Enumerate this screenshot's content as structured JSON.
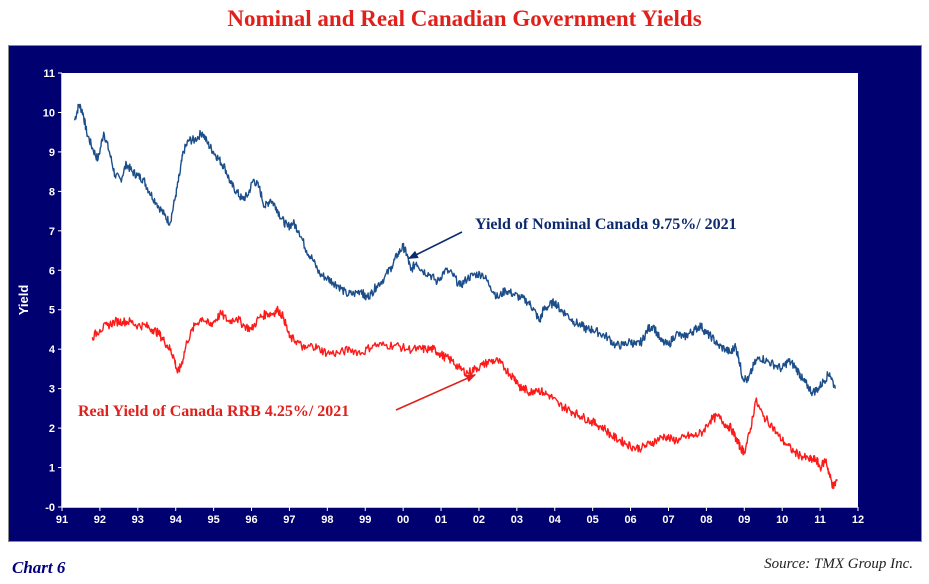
{
  "page": {
    "title": "Nominal and Real Canadian Government Yields",
    "chart_label": "Chart 6",
    "source": "Source: TMX Group Inc."
  },
  "chart_data": {
    "type": "line",
    "title": "Nominal and Real Canadian Government Yields",
    "xlabel": "",
    "ylabel": "Yield",
    "x_tick_labels": [
      "91",
      "92",
      "93",
      "94",
      "95",
      "96",
      "97",
      "98",
      "99",
      "00",
      "01",
      "02",
      "03",
      "04",
      "05",
      "06",
      "07",
      "08",
      "09",
      "10",
      "11",
      "12"
    ],
    "y_tick_labels": [
      "-0",
      "1",
      "2",
      "3",
      "4",
      "5",
      "6",
      "7",
      "8",
      "9",
      "10",
      "11"
    ],
    "xlim": [
      1991,
      2012
    ],
    "ylim": [
      0,
      11
    ],
    "grid": false,
    "legend": "none",
    "colors": {
      "nominal": "#1c4e8a",
      "real": "#ff1a1a",
      "background": "#000070",
      "plot_area": "#ffffff"
    },
    "series": [
      {
        "key": "nominal",
        "x": [
          1991.33,
          1991.45,
          1991.55,
          1991.65,
          1991.8,
          1991.95,
          1992.1,
          1992.25,
          1992.4,
          1992.55,
          1992.7,
          1992.85,
          1993.0,
          1993.15,
          1993.3,
          1993.5,
          1993.7,
          1993.85,
          1994.0,
          1994.1,
          1994.2,
          1994.35,
          1994.5,
          1994.7,
          1994.85,
          1995.0,
          1995.15,
          1995.3,
          1995.45,
          1995.6,
          1995.75,
          1995.9,
          1996.05,
          1996.2,
          1996.35,
          1996.5,
          1996.65,
          1996.8,
          1996.95,
          1997.1,
          1997.25,
          1997.45,
          1997.6,
          1997.8,
          1998.0,
          1998.15,
          1998.3,
          1998.5,
          1998.7,
          1998.9,
          1999.0,
          1999.15,
          1999.3,
          1999.5,
          1999.7,
          1999.85,
          2000.0,
          2000.1,
          2000.2,
          2000.35,
          2000.5,
          2000.7,
          2000.9,
          2001.1,
          2001.3,
          2001.5,
          2001.7,
          2001.9,
          2002.1,
          2002.3,
          2002.5,
          2002.7,
          2002.9,
          2003.1,
          2003.3,
          2003.45,
          2003.6,
          2003.7,
          2003.85,
          2004.0,
          2004.15,
          2004.3,
          2004.5,
          2004.7,
          2004.85,
          2005.0,
          2005.2,
          2005.4,
          2005.6,
          2005.8,
          2006.0,
          2006.15,
          2006.3,
          2006.45,
          2006.6,
          2006.8,
          2007.0,
          2007.2,
          2007.4,
          2007.55,
          2007.7,
          2007.85,
          2008.0,
          2008.15,
          2008.3,
          2008.5,
          2008.65,
          2008.75,
          2008.85,
          2008.95,
          2009.1,
          2009.25,
          2009.4,
          2009.6,
          2009.8,
          2010.0,
          2010.15,
          2010.3,
          2010.45,
          2010.55,
          2010.65,
          2010.8,
          2010.95,
          2011.1,
          2011.25,
          2011.4
        ],
        "y": [
          9.8,
          10.2,
          10.0,
          9.5,
          9.1,
          8.8,
          9.5,
          9.0,
          8.4,
          8.3,
          8.7,
          8.5,
          8.4,
          8.3,
          8.0,
          7.7,
          7.4,
          7.2,
          7.9,
          8.4,
          9.0,
          9.3,
          9.3,
          9.5,
          9.2,
          9.0,
          8.8,
          8.6,
          8.2,
          8.0,
          7.8,
          7.9,
          8.3,
          8.1,
          7.6,
          7.8,
          7.6,
          7.3,
          7.1,
          7.2,
          7.0,
          6.5,
          6.3,
          5.9,
          5.8,
          5.7,
          5.6,
          5.4,
          5.4,
          5.5,
          5.3,
          5.4,
          5.6,
          5.8,
          6.1,
          6.4,
          6.6,
          6.4,
          6.0,
          6.2,
          6.0,
          5.9,
          5.7,
          6.0,
          5.9,
          5.6,
          5.8,
          5.9,
          5.9,
          5.6,
          5.3,
          5.5,
          5.4,
          5.3,
          5.2,
          5.0,
          4.7,
          5.0,
          5.1,
          5.2,
          5.0,
          4.9,
          4.7,
          4.6,
          4.5,
          4.5,
          4.4,
          4.3,
          4.1,
          4.1,
          4.2,
          4.1,
          4.2,
          4.5,
          4.6,
          4.2,
          4.1,
          4.4,
          4.3,
          4.4,
          4.5,
          4.6,
          4.4,
          4.3,
          4.1,
          4.0,
          3.9,
          4.1,
          3.8,
          3.3,
          3.2,
          3.6,
          3.8,
          3.7,
          3.6,
          3.5,
          3.7,
          3.6,
          3.4,
          3.2,
          3.1,
          2.9,
          3.0,
          3.2,
          3.4,
          3.0
        ]
      },
      {
        "key": "real",
        "x": [
          1991.8,
          1992.0,
          1992.2,
          1992.4,
          1992.6,
          1992.8,
          1993.0,
          1993.2,
          1993.4,
          1993.55,
          1993.7,
          1993.85,
          1993.95,
          1994.05,
          1994.15,
          1994.3,
          1994.5,
          1994.7,
          1994.9,
          1995.0,
          1995.2,
          1995.4,
          1995.6,
          1995.8,
          1996.0,
          1996.2,
          1996.4,
          1996.55,
          1996.7,
          1996.85,
          1997.0,
          1997.2,
          1997.4,
          1997.6,
          1997.8,
          1998.0,
          1998.3,
          1998.6,
          1998.9,
          1999.2,
          1999.5,
          1999.8,
          2000.1,
          2000.4,
          2000.6,
          2000.8,
          2000.95,
          2001.1,
          2001.3,
          2001.5,
          2001.7,
          2001.9,
          2002.1,
          2002.3,
          2002.5,
          2002.7,
          2002.9,
          2003.0,
          2003.1,
          2003.2,
          2003.35,
          2003.5,
          2003.7,
          2003.9,
          2004.1,
          2004.3,
          2004.5,
          2004.7,
          2004.9,
          2005.1,
          2005.3,
          2005.5,
          2005.7,
          2005.9,
          2006.1,
          2006.3,
          2006.5,
          2006.7,
          2006.9,
          2007.1,
          2007.3,
          2007.5,
          2007.7,
          2007.9,
          2008.1,
          2008.3,
          2008.5,
          2008.65,
          2008.8,
          2008.9,
          2009.0,
          2009.15,
          2009.3,
          2009.5,
          2009.7,
          2009.9,
          2010.1,
          2010.3,
          2010.5,
          2010.7,
          2010.8,
          2010.9,
          2011.0,
          2011.15,
          2011.25,
          2011.35,
          2011.45
        ],
        "y": [
          4.3,
          4.5,
          4.6,
          4.7,
          4.7,
          4.7,
          4.6,
          4.6,
          4.5,
          4.4,
          4.2,
          4.0,
          3.8,
          3.4,
          3.6,
          4.2,
          4.6,
          4.8,
          4.6,
          4.7,
          4.9,
          4.7,
          4.8,
          4.6,
          4.5,
          4.8,
          4.9,
          4.9,
          5.0,
          4.8,
          4.3,
          4.2,
          4.0,
          4.1,
          4.0,
          3.9,
          3.9,
          4.0,
          3.9,
          4.1,
          4.1,
          4.1,
          4.0,
          4.0,
          4.0,
          4.0,
          3.9,
          3.8,
          3.7,
          3.5,
          3.4,
          3.5,
          3.6,
          3.7,
          3.7,
          3.5,
          3.3,
          3.2,
          3.0,
          3.0,
          2.9,
          3.0,
          2.9,
          2.8,
          2.6,
          2.5,
          2.4,
          2.3,
          2.2,
          2.1,
          2.0,
          1.8,
          1.7,
          1.6,
          1.5,
          1.5,
          1.6,
          1.7,
          1.8,
          1.7,
          1.7,
          1.8,
          1.8,
          1.9,
          2.2,
          2.3,
          2.1,
          2.0,
          1.7,
          1.5,
          1.4,
          1.9,
          2.7,
          2.3,
          2.1,
          1.8,
          1.6,
          1.4,
          1.3,
          1.2,
          1.2,
          1.2,
          1.0,
          1.2,
          0.8,
          0.5,
          0.7
        ]
      }
    ],
    "annotations": [
      {
        "key": "nominal",
        "text": "Yield of Nominal Canada 9.75%/ 2021",
        "point_to": [
          2000.15,
          6.3
        ]
      },
      {
        "key": "real",
        "text": "Real Yield of Canada RRB 4.25%/ 2021",
        "point_to": [
          2001.9,
          3.35
        ]
      }
    ]
  }
}
